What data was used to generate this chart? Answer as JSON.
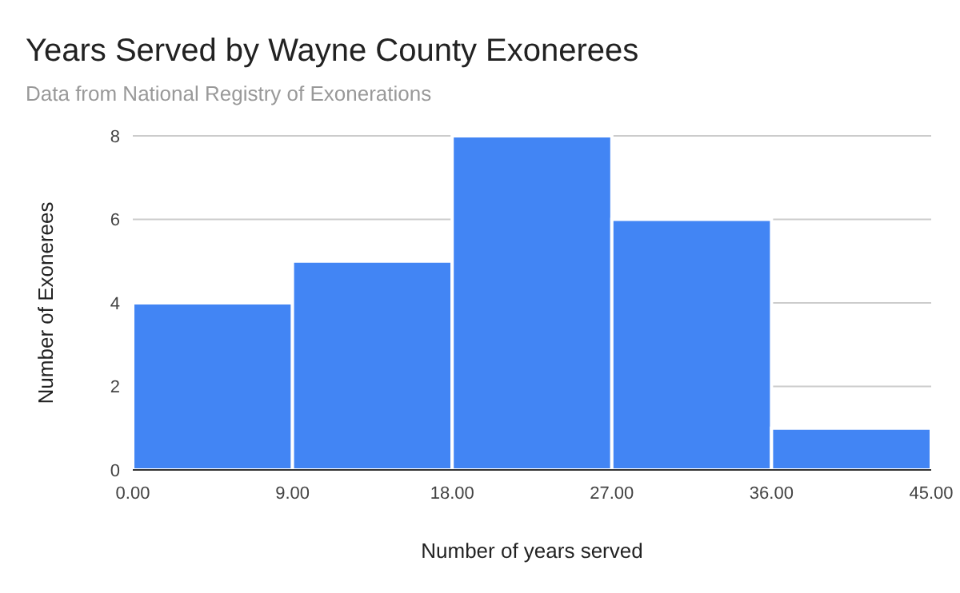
{
  "chart_data": {
    "type": "histogram",
    "title": "Years Served by Wayne County Exonerees",
    "subtitle": "Data from National Registry of Exonerations",
    "xlabel": "Number of years served",
    "ylabel": "Number of Exonerees",
    "bins": [
      0,
      9,
      18,
      27,
      36,
      45
    ],
    "values": [
      4,
      5,
      8,
      6,
      1
    ],
    "color": "#4285f4",
    "xlim": [
      0,
      45
    ],
    "xticks": [
      {
        "value": 0,
        "label": "0.00"
      },
      {
        "value": 9,
        "label": "9.00"
      },
      {
        "value": 18,
        "label": "18.00"
      },
      {
        "value": 27,
        "label": "27.00"
      },
      {
        "value": 36,
        "label": "36.00"
      },
      {
        "value": 45,
        "label": "45.00"
      }
    ],
    "ylim": [
      0,
      8
    ],
    "yticks": [
      0,
      2,
      4,
      6,
      8
    ],
    "grid": "y"
  }
}
